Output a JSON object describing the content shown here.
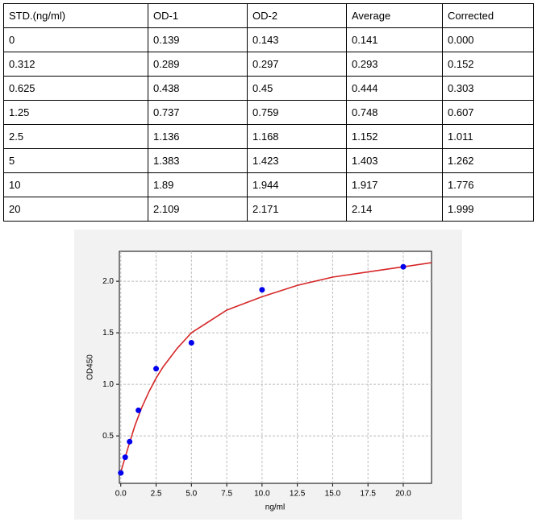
{
  "table": {
    "header": [
      "STD.(ng/ml)",
      "OD-1",
      "OD-2",
      "Average",
      "Corrected"
    ],
    "rows": [
      [
        "0",
        "0.139",
        "0.143",
        "0.141",
        "0.000"
      ],
      [
        "0.312",
        "0.289",
        "0.297",
        "0.293",
        "0.152"
      ],
      [
        "0.625",
        "0.438",
        "0.45",
        "0.444",
        "0.303"
      ],
      [
        "1.25",
        "0.737",
        "0.759",
        "0.748",
        "0.607"
      ],
      [
        "2.5",
        "1.136",
        "1.168",
        "1.152",
        "1.011"
      ],
      [
        "5",
        "1.383",
        "1.423",
        "1.403",
        "1.262"
      ],
      [
        "10",
        "1.89",
        "1.944",
        "1.917",
        "1.776"
      ],
      [
        "20",
        "2.109",
        "2.171",
        "2.14",
        "1.999"
      ]
    ]
  },
  "chart_data": {
    "type": "scatter",
    "xlabel": "ng/ml",
    "ylabel": "OD450",
    "x": [
      0,
      0.312,
      0.625,
      1.25,
      2.5,
      5,
      10,
      20
    ],
    "values": [
      0.141,
      0.293,
      0.444,
      0.748,
      1.152,
      1.403,
      1.917,
      2.14
    ],
    "color": "#0000ee",
    "curve": {
      "color": "#d62728",
      "x": [
        0,
        0.5,
        1,
        1.5,
        2,
        2.5,
        3,
        4,
        5,
        7.5,
        10,
        12.5,
        15,
        17.5,
        20,
        22
      ],
      "values": [
        0.15,
        0.38,
        0.6,
        0.78,
        0.93,
        1.06,
        1.17,
        1.35,
        1.5,
        1.72,
        1.85,
        1.96,
        2.04,
        2.09,
        2.14,
        2.18
      ]
    },
    "xlim": [
      -0.1,
      22
    ],
    "ylim": [
      0.04,
      2.29
    ],
    "xticks": [
      {
        "value": 0,
        "label": "0.0"
      },
      2.5,
      {
        "value": 5,
        "label": "5.0"
      },
      7.5,
      {
        "value": 10,
        "label": "10.0"
      },
      12.5,
      {
        "value": 15,
        "label": "15.0"
      },
      17.5,
      {
        "value": 20,
        "label": "20.0"
      }
    ],
    "yticks": [
      0.5,
      {
        "value": 1,
        "label": "1.0"
      },
      1.5,
      {
        "value": 2,
        "label": "2.0"
      }
    ],
    "grid": true
  }
}
